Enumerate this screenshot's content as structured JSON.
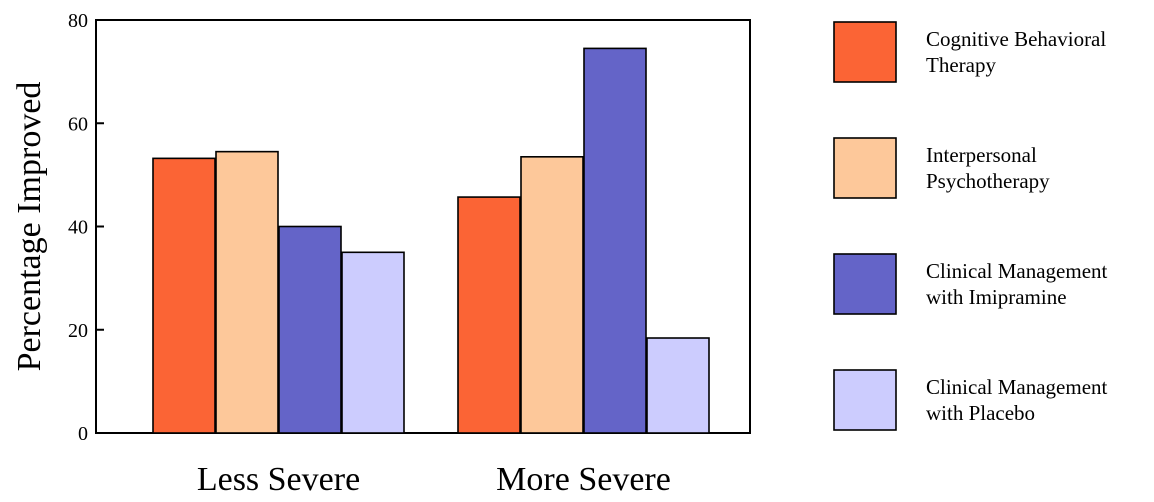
{
  "chart_data": {
    "type": "bar",
    "title": "",
    "xlabel": "",
    "ylabel": "Percentage Improved",
    "ylim": [
      0,
      80
    ],
    "yticks": [
      "0",
      "20",
      "40",
      "60",
      "80"
    ],
    "grid": false,
    "legend_position": "right",
    "categories": [
      "Less Severe",
      "More Severe"
    ],
    "series": [
      {
        "name_lines": [
          "Cognitive Behavioral",
          "Therapy"
        ],
        "color": "#fb6435",
        "values": [
          53.2,
          45.7
        ]
      },
      {
        "name_lines": [
          "Interpersonal",
          "Psychotherapy"
        ],
        "color": "#fdc89a",
        "values": [
          54.5,
          53.5
        ]
      },
      {
        "name_lines": [
          "Clinical Management",
          "with Imipramine"
        ],
        "color": "#6464c8",
        "values": [
          40.0,
          74.5
        ]
      },
      {
        "name_lines": [
          "Clinical Management",
          "with Placebo"
        ],
        "color": "#ccccfe",
        "values": [
          35.0,
          18.4
        ]
      }
    ]
  }
}
